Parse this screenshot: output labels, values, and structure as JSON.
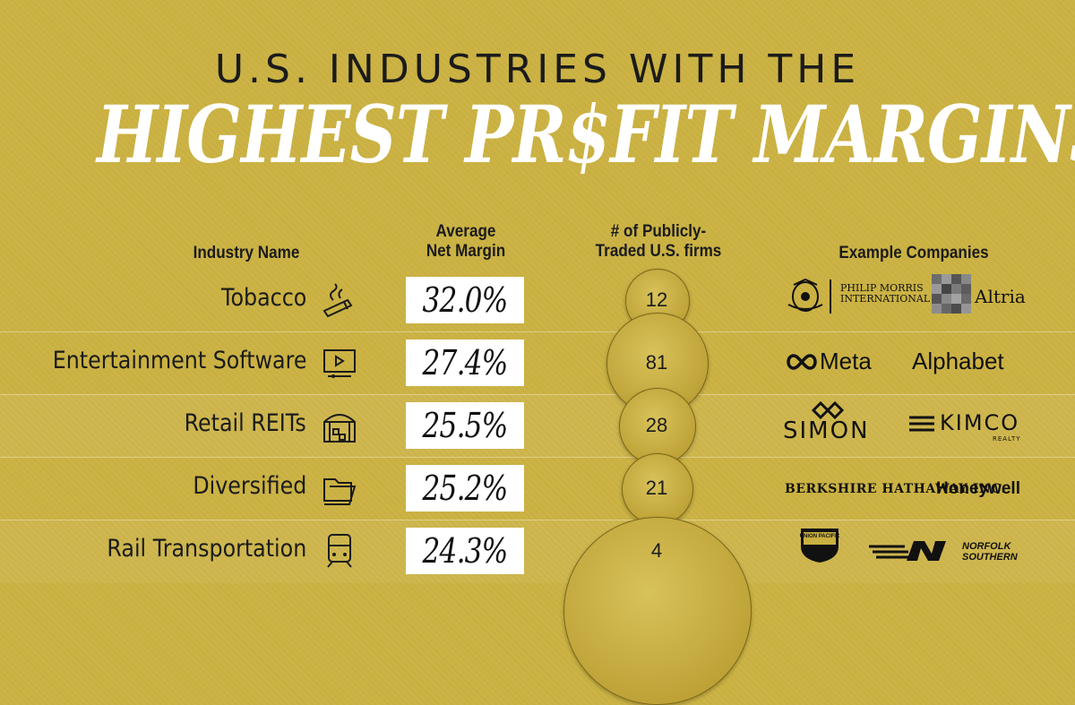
{
  "header": {
    "subtitle": "U.S. INDUSTRIES WITH THE",
    "title": "HIGHEST PR$FIT MARGINS"
  },
  "columns": {
    "industry": "Industry Name",
    "margin_line1": "Average",
    "margin_line2": "Net Margin",
    "firms_line1": "# of Publicly-",
    "firms_line2": "Traded U.S. firms",
    "companies": "Example Companies"
  },
  "companies": {
    "r0_a": "PHILIP MORRIS",
    "r0_a2": "INTERNATIONAL",
    "r0_b": "Altria",
    "r1_a": "Meta",
    "r1_b": "Alphabet",
    "r2_a": "SIMON",
    "r2_b": "KIMCO",
    "r2_b2": "REALTY",
    "r3_a": "BERKSHIRE HATHAWAY INC.",
    "r3_b": "Honeywell",
    "r4_a": "UNION PACIFIC",
    "r4_b": "NORFOLK",
    "r4_b2": "SOUTHERN"
  },
  "colors": {
    "background": "#c9b040",
    "bubble": "#bda136",
    "bar": "#ffffff",
    "text": "#1b1b1b"
  },
  "chart_data": {
    "type": "table",
    "categories": [
      "Tobacco",
      "Entertainment Software",
      "Retail REITs",
      "Diversified",
      "Rail Transportation"
    ],
    "icons": [
      "smoking-icon",
      "video-player-icon",
      "storefront-icon",
      "folders-icon",
      "train-icon"
    ],
    "series": [
      {
        "name": "Average Net Margin",
        "values": [
          32.0,
          27.4,
          25.5,
          25.2,
          24.3
        ],
        "labels": [
          "32.0%",
          "27.4%",
          "25.5%",
          "25.2%",
          "24.3%"
        ]
      },
      {
        "name": "# of Publicly-Traded U.S. firms",
        "values": [
          12,
          81,
          28,
          21,
          4
        ]
      }
    ]
  }
}
